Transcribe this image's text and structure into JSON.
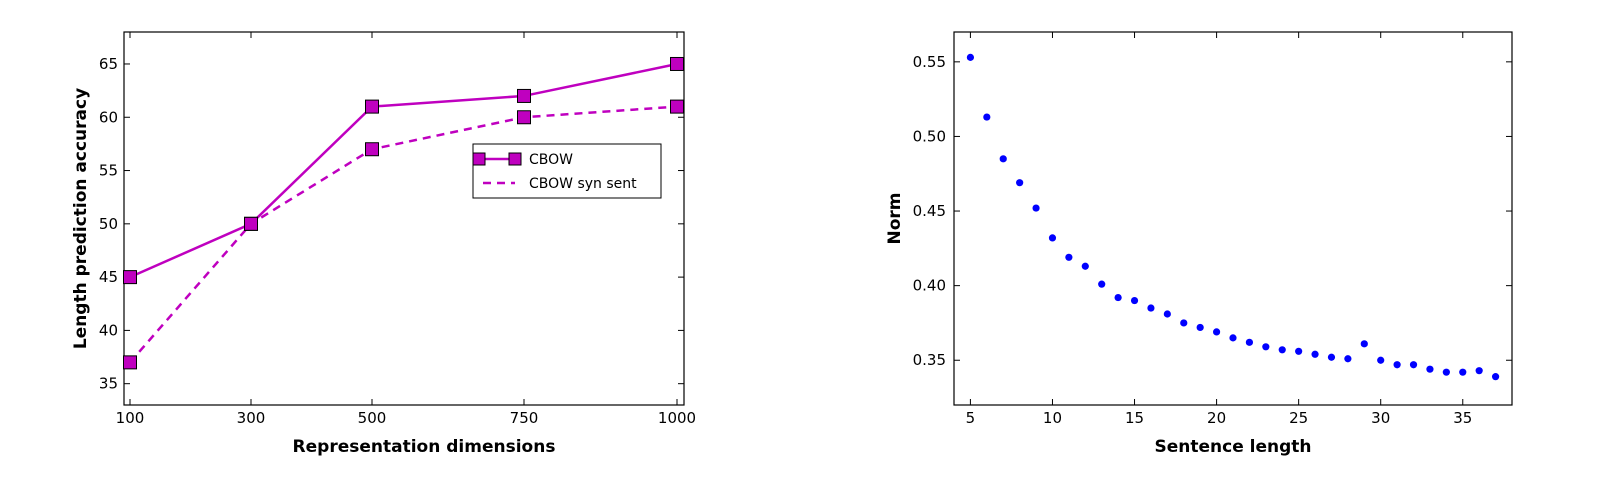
{
  "chart_data": [
    {
      "type": "line",
      "xlabel": "Representation dimensions",
      "ylabel": "Length prediction accuracy",
      "categories": [
        "100",
        "300",
        "500",
        "750",
        "1000"
      ],
      "ylim": [
        33,
        68
      ],
      "yticks": [
        35,
        40,
        45,
        50,
        55,
        60,
        65
      ],
      "grid": false,
      "legend_position": "right",
      "color": "#bf00bf",
      "series": [
        {
          "name": "CBOW",
          "style": "solid",
          "marker": "square",
          "values": [
            45,
            50,
            61,
            62,
            65
          ]
        },
        {
          "name": "CBOW syn sent",
          "style": "dashed",
          "marker": "square",
          "values": [
            37,
            50,
            57,
            60,
            61
          ]
        }
      ]
    },
    {
      "type": "scatter",
      "xlabel": "Sentence length",
      "ylabel": "Norm",
      "xlim": [
        4,
        38
      ],
      "ylim": [
        0.32,
        0.57
      ],
      "xticks": [
        5,
        10,
        15,
        20,
        25,
        30,
        35
      ],
      "yticks": [
        "0.35",
        "0.40",
        "0.45",
        "0.50",
        "0.55"
      ],
      "grid": false,
      "color": "#0000ff",
      "x": [
        5,
        6,
        7,
        8,
        9,
        10,
        11,
        12,
        13,
        14,
        15,
        16,
        17,
        18,
        19,
        20,
        21,
        22,
        23,
        24,
        25,
        26,
        27,
        28,
        29,
        30,
        31,
        32,
        33,
        34,
        35,
        36,
        37
      ],
      "y": [
        0.553,
        0.513,
        0.485,
        0.469,
        0.452,
        0.432,
        0.419,
        0.413,
        0.401,
        0.392,
        0.39,
        0.385,
        0.381,
        0.375,
        0.372,
        0.369,
        0.365,
        0.362,
        0.359,
        0.357,
        0.356,
        0.354,
        0.352,
        0.351,
        0.361,
        0.35,
        0.347,
        0.347,
        0.344,
        0.342,
        0.342,
        0.343,
        0.339
      ]
    }
  ]
}
